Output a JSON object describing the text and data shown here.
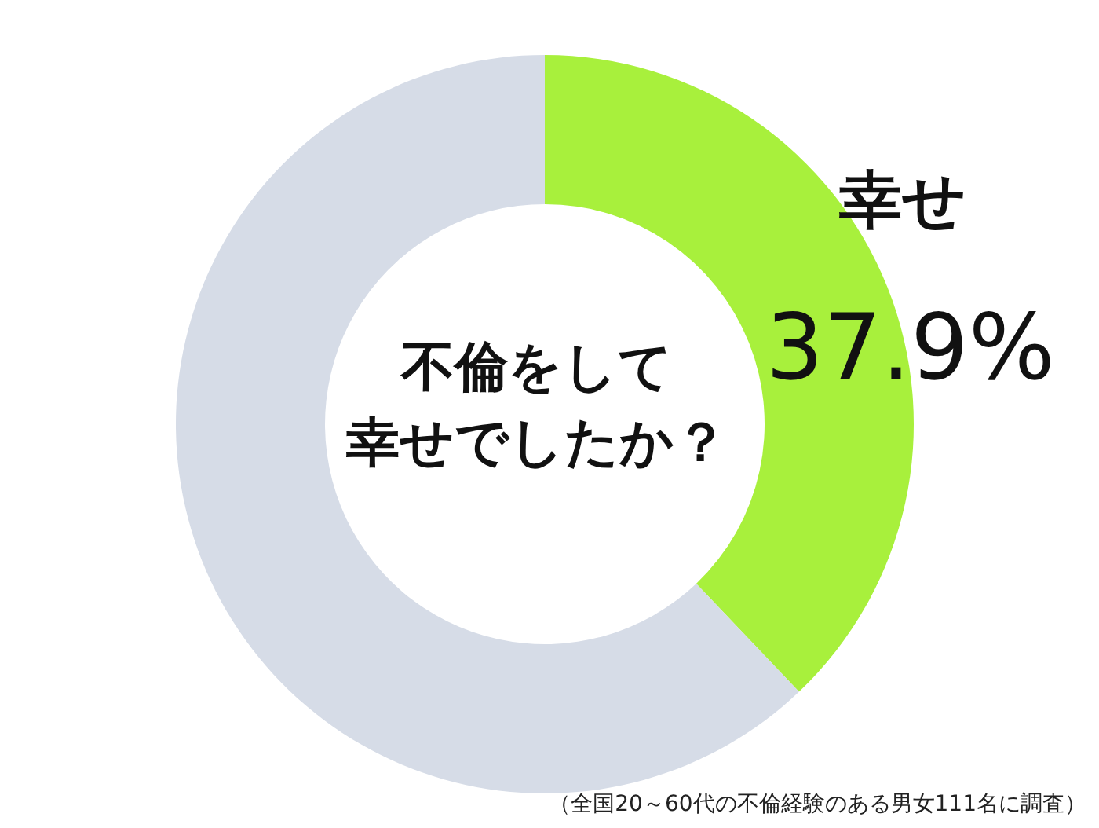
{
  "chart_data": {
    "type": "donut",
    "title": "不倫をして幸せでしたか？",
    "categories": [
      "幸せ",
      null
    ],
    "values": [
      37.9,
      62.1
    ],
    "colors": [
      "#a8f03c",
      "#d6dce7"
    ],
    "value_labels": [
      "37.9%",
      null
    ],
    "annotations": [
      "（全国20～60代の不倫経験のある男女111名に調査）"
    ]
  }
}
